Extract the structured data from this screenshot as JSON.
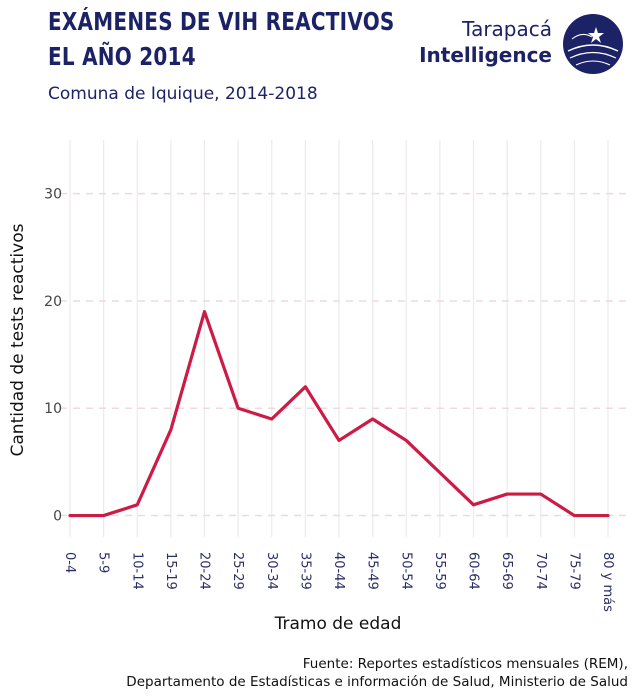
{
  "header": {
    "title_line1": "EXÁMENES DE VIH REACTIVOS",
    "title_line2": "EL AÑO 2014",
    "subtitle": "Comuna de Iquique, 2014-2018"
  },
  "logo": {
    "line1": "Tarapacá",
    "line2": "Intelligence",
    "icon": "globe-logo-icon",
    "color": "#1c2266"
  },
  "footer": {
    "source_line1": "Fuente: Reportes estadísticos mensuales (REM),",
    "source_line2": "Departamento de Estadísticas e información de Salud, Ministerio de Salud"
  },
  "chart_data": {
    "type": "line",
    "categories": [
      "0-4",
      "5-9",
      "10-14",
      "15-19",
      "20-24",
      "25-29",
      "30-34",
      "35-39",
      "40-44",
      "45-49",
      "50-54",
      "55-59",
      "60-64",
      "65-69",
      "70-74",
      "75-79",
      "80 y más"
    ],
    "series": [
      {
        "values": [
          0,
          0,
          1,
          8,
          19,
          10,
          9,
          12,
          7,
          9,
          7,
          4,
          1,
          2,
          2,
          0,
          0
        ],
        "color": "#cc1b45"
      }
    ],
    "xlabel": "Tramo de edad",
    "ylabel": "Cantidad de tests reactivos",
    "yticks": [
      0,
      10,
      20,
      30
    ],
    "ylim": [
      -2,
      35
    ],
    "grid": {
      "horizontal": "dashed",
      "vertical": "solid"
    }
  }
}
